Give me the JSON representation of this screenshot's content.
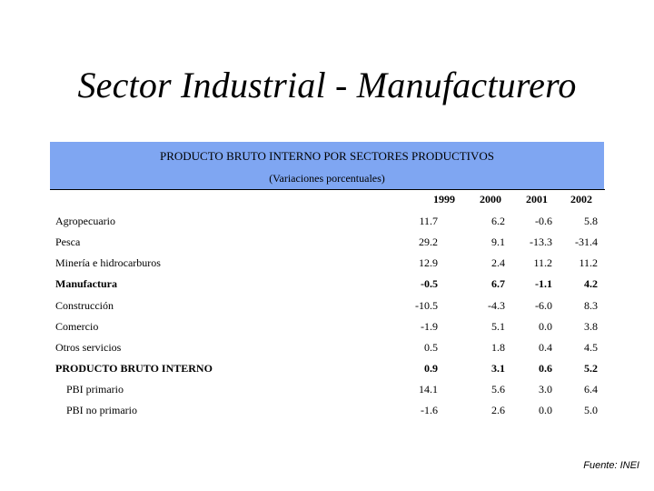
{
  "title": "Sector Industrial - Manufacturero",
  "table": {
    "title": "PRODUCTO BRUTO INTERNO POR SECTORES PRODUCTIVOS",
    "subtitle": "(Variaciones porcentuales)",
    "header_color": "#7fa6f2",
    "years": [
      "1999",
      "2000",
      "2001",
      "2002"
    ],
    "rows": [
      {
        "label": "Agropecuario",
        "values": [
          "11.7",
          "6.2",
          "-0.6",
          "5.8"
        ],
        "bold": false,
        "indent": false
      },
      {
        "label": "Pesca",
        "values": [
          "29.2",
          "9.1",
          "-13.3",
          "-31.4"
        ],
        "bold": false,
        "indent": false
      },
      {
        "label": "Minería e hidrocarburos",
        "values": [
          "12.9",
          "2.4",
          "11.2",
          "11.2"
        ],
        "bold": false,
        "indent": false
      },
      {
        "label": "Manufactura",
        "values": [
          "-0.5",
          "6.7",
          "-1.1",
          "4.2"
        ],
        "bold": true,
        "indent": false
      },
      {
        "label": "Construcción",
        "values": [
          "-10.5",
          "-4.3",
          "-6.0",
          "8.3"
        ],
        "bold": false,
        "indent": false
      },
      {
        "label": "Comercio",
        "values": [
          "-1.9",
          "5.1",
          "0.0",
          "3.8"
        ],
        "bold": false,
        "indent": false
      },
      {
        "label": "Otros servicios",
        "values": [
          "0.5",
          "1.8",
          "0.4",
          "4.5"
        ],
        "bold": false,
        "indent": false
      },
      {
        "label": "PRODUCTO BRUTO INTERNO",
        "values": [
          "0.9",
          "3.1",
          "0.6",
          "5.2"
        ],
        "bold": true,
        "indent": false
      },
      {
        "label": "PBI primario",
        "values": [
          "14.1",
          "5.6",
          "3.0",
          "6.4"
        ],
        "bold": false,
        "indent": true
      },
      {
        "label": "PBI no primario",
        "values": [
          "-1.6",
          "2.6",
          "0.0",
          "5.0"
        ],
        "bold": false,
        "indent": true
      }
    ]
  },
  "source": "Fuente: INEI"
}
